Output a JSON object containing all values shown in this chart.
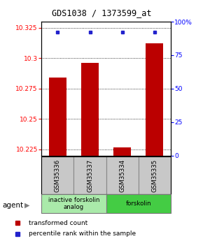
{
  "title": "GDS1038 / 1373599_at",
  "samples": [
    "GSM35336",
    "GSM35337",
    "GSM35334",
    "GSM35335"
  ],
  "red_values": [
    10.284,
    10.296,
    10.2265,
    10.312
  ],
  "blue_values": [
    92,
    92,
    92,
    92
  ],
  "ylim_left": [
    10.22,
    10.33
  ],
  "ylim_right": [
    0,
    100
  ],
  "yticks_left": [
    10.225,
    10.25,
    10.275,
    10.3,
    10.325
  ],
  "yticks_right": [
    0,
    25,
    50,
    75,
    100
  ],
  "ytick_labels_left": [
    "10.225",
    "10.25",
    "10.275",
    "10.3",
    "10.325"
  ],
  "ytick_labels_right": [
    "0",
    "25",
    "50",
    "75",
    "100%"
  ],
  "groups": [
    {
      "label": "inactive forskolin\nanalog",
      "samples": [
        0,
        1
      ],
      "color": "#aaeaaa"
    },
    {
      "label": "forskolin",
      "samples": [
        2,
        3
      ],
      "color": "#44cc44"
    }
  ],
  "bar_color": "#bb0000",
  "dot_color": "#2222cc",
  "bar_width": 0.55,
  "agent_label": "agent",
  "legend_red": "transformed count",
  "legend_blue": "percentile rank within the sample",
  "sample_box_color": "#c8c8c8",
  "sample_box_edge": "#888888"
}
